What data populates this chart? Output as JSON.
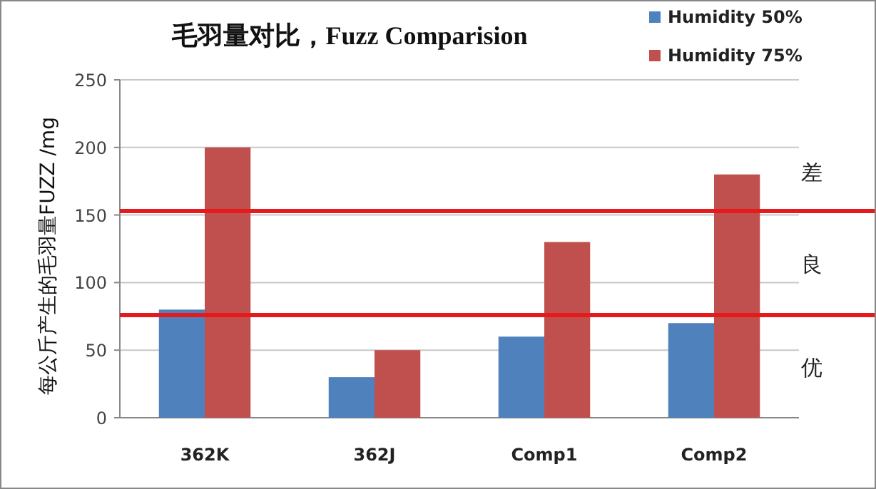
{
  "chart_data": {
    "type": "bar",
    "title": "毛羽量对比，Fuzz Comparision",
    "ylabel": "每公斤产生的毛羽量FUZZ /mg",
    "categories": [
      "362K",
      "362J",
      "Comp1",
      "Comp2"
    ],
    "series": [
      {
        "name": "Humidity 50%",
        "color": "#4f81bd",
        "values": [
          80,
          30,
          60,
          70
        ]
      },
      {
        "name": "Humidity 75%",
        "color": "#c0504d",
        "values": [
          200,
          50,
          130,
          180
        ]
      }
    ],
    "ylim": [
      0,
      250
    ],
    "yticks": [
      0,
      50,
      100,
      150,
      200,
      250
    ],
    "grid": "y",
    "legend": "top right",
    "ref_lines": [
      {
        "axis": "y",
        "value": 153,
        "color": "#e41a1c"
      },
      {
        "axis": "y",
        "value": 76,
        "color": "#e41a1c"
      }
    ],
    "annotations": [
      "差",
      "良",
      "优"
    ]
  }
}
